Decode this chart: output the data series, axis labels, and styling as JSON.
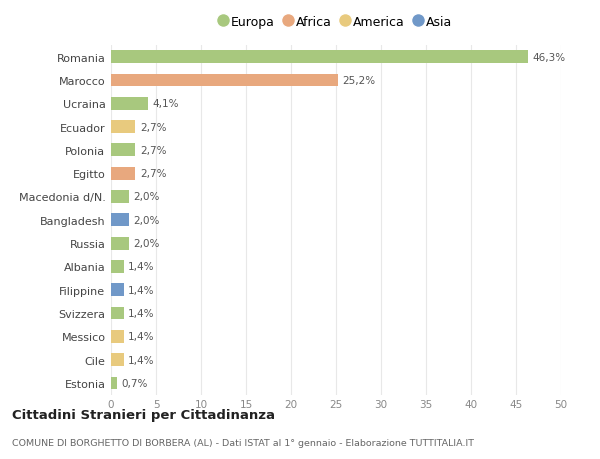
{
  "categories": [
    "Romania",
    "Marocco",
    "Ucraina",
    "Ecuador",
    "Polonia",
    "Egitto",
    "Macedonia d/N.",
    "Bangladesh",
    "Russia",
    "Albania",
    "Filippine",
    "Svizzera",
    "Messico",
    "Cile",
    "Estonia"
  ],
  "values": [
    46.3,
    25.2,
    4.1,
    2.7,
    2.7,
    2.7,
    2.0,
    2.0,
    2.0,
    1.4,
    1.4,
    1.4,
    1.4,
    1.4,
    0.7
  ],
  "labels": [
    "46,3%",
    "25,2%",
    "4,1%",
    "2,7%",
    "2,7%",
    "2,7%",
    "2,0%",
    "2,0%",
    "2,0%",
    "1,4%",
    "1,4%",
    "1,4%",
    "1,4%",
    "1,4%",
    "0,7%"
  ],
  "colors": [
    "#a8c87e",
    "#e8a87e",
    "#a8c87e",
    "#e8ca7e",
    "#a8c87e",
    "#e8a87e",
    "#a8c87e",
    "#7098c8",
    "#a8c87e",
    "#a8c87e",
    "#7098c8",
    "#a8c87e",
    "#e8ca7e",
    "#e8ca7e",
    "#a8c87e"
  ],
  "legend_labels": [
    "Europa",
    "Africa",
    "America",
    "Asia"
  ],
  "legend_colors": [
    "#a8c87e",
    "#e8a87e",
    "#e8ca7e",
    "#7098c8"
  ],
  "title": "Cittadini Stranieri per Cittadinanza",
  "subtitle": "COMUNE DI BORGHETTO DI BORBERA (AL) - Dati ISTAT al 1° gennaio - Elaborazione TUTTITALIA.IT",
  "xlim": [
    0,
    50
  ],
  "xticks": [
    0,
    5,
    10,
    15,
    20,
    25,
    30,
    35,
    40,
    45,
    50
  ],
  "background_color": "#ffffff",
  "grid_color": "#e8e8e8"
}
